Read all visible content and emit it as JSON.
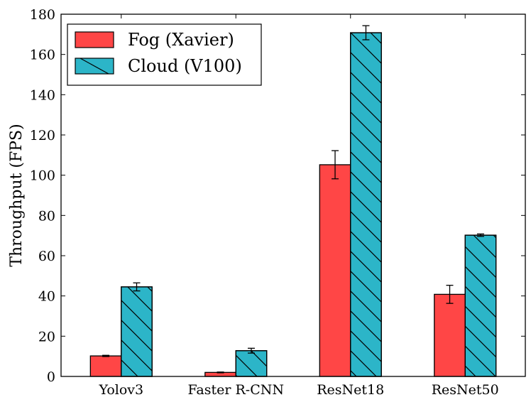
{
  "chart_data": {
    "type": "bar",
    "title": "",
    "xlabel": "",
    "ylabel": "Throughput (FPS)",
    "ylim": [
      0,
      180
    ],
    "yticks": [
      0,
      20,
      40,
      60,
      80,
      100,
      120,
      140,
      160,
      180
    ],
    "grid": false,
    "legend_position": "top-left",
    "categories": [
      "Yolov3",
      "Faster R-CNN",
      "ResNet18",
      "ResNet50"
    ],
    "series": [
      {
        "name": "Fog (Xavier)",
        "color": "#ff4646",
        "hatch": "none",
        "values": [
          10.2,
          2.0,
          105.2,
          40.8
        ],
        "errors": [
          0.3,
          0.2,
          7.0,
          4.5
        ]
      },
      {
        "name": "Cloud (V100)",
        "color": "#2cb5c8",
        "hatch": "diagonal",
        "values": [
          44.5,
          12.8,
          170.8,
          70.2
        ],
        "errors": [
          2.0,
          1.2,
          3.5,
          0.6
        ]
      }
    ]
  }
}
